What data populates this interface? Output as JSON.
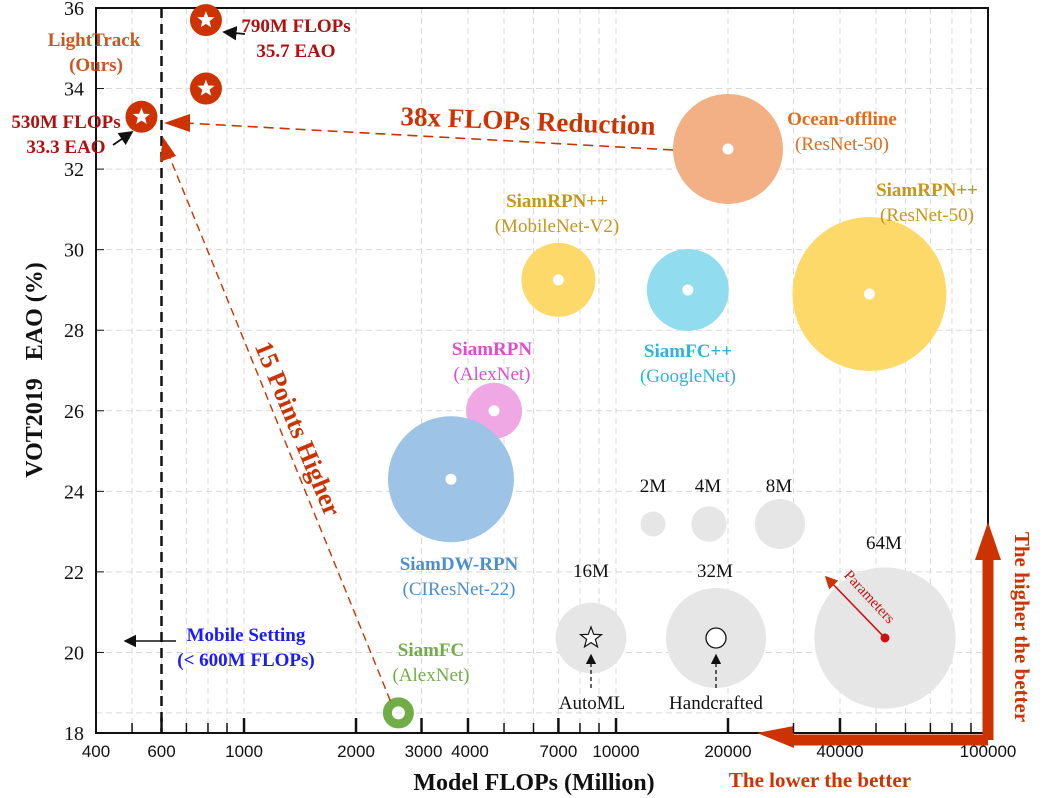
{
  "chart_data": {
    "type": "scatter",
    "subtype": "bubble",
    "title": "",
    "xlabel": "Model FLOPs (Million)",
    "ylabel": "VOT2019   EAO (%)",
    "xscale": "log",
    "xlim": [
      400,
      100000
    ],
    "ylim": [
      18,
      36
    ],
    "grid": true,
    "x_ticks": [
      400,
      600,
      1000,
      2000,
      3000,
      4000,
      7000,
      10000,
      20000,
      40000,
      100000
    ],
    "x_tick_labels": [
      "400",
      "600",
      "1000",
      "2000",
      "3000",
      "4000",
      "7000",
      "10000",
      "20000",
      "40000",
      "100000"
    ],
    "y_ticks": [
      18,
      20,
      22,
      24,
      26,
      28,
      30,
      32,
      34,
      36
    ],
    "y_tick_labels": [
      "18",
      "20",
      "22",
      "24",
      "26",
      "28",
      "30",
      "32",
      "34",
      "36"
    ],
    "series": [
      {
        "name": "LightTrack",
        "sub": "(Ours)",
        "marker": "star",
        "color": "#cc3300",
        "points": [
          {
            "flops": 530,
            "eao": 33.3
          },
          {
            "flops": 790,
            "eao": 34.0
          },
          {
            "flops": 790,
            "eao": 35.7
          }
        ]
      },
      {
        "name": "Ocean-offline",
        "sub": "(ResNet-50)",
        "marker": "bubble",
        "color": "#f2b084",
        "label_color": "#e06a1e",
        "flops": 20000,
        "eao": 32.5,
        "params_m": 26
      },
      {
        "name": "SiamRPN++",
        "sub": "(MobileNet-V2)",
        "marker": "bubble",
        "color": "#fdd96a",
        "label_color": "#c8951a",
        "flops": 7000,
        "eao": 29.25,
        "params_m": 11
      },
      {
        "name": "SiamFC++",
        "sub": "(GoogleNet)",
        "marker": "bubble",
        "color": "#92dcef",
        "label_color": "#2fb4d8",
        "flops": 15600,
        "eao": 29.0,
        "params_m": 14
      },
      {
        "name": "SiamRPN++",
        "sub": "(ResNet-50)",
        "marker": "bubble",
        "color": "#fdd96a",
        "label_color": "#c8951a",
        "flops": 48000,
        "eao": 28.9,
        "params_m": 54
      },
      {
        "name": "SiamRPN",
        "sub": "(AlexNet)",
        "marker": "bubble",
        "color": "#f0a8e4",
        "label_color": "#e04ccc",
        "flops": 4700,
        "eao": 26.0,
        "params_m": 6
      },
      {
        "name": "SiamDW-RPN",
        "sub": "(CIResNet-22)",
        "marker": "bubble",
        "color": "#9dc3e6",
        "label_color": "#4a8fd0",
        "flops": 3600,
        "eao": 24.3,
        "params_m": 36
      },
      {
        "name": "SiamFC",
        "sub": "(AlexNet)",
        "marker": "ring",
        "color": "#70ad47",
        "label_color": "#70ad47",
        "flops": 2600,
        "eao": 18.5,
        "params_m": 2
      }
    ],
    "size_legend": {
      "color": "#e6e6e6",
      "items": [
        {
          "label": "2M",
          "params_m": 2
        },
        {
          "label": "4M",
          "params_m": 4
        },
        {
          "label": "8M",
          "params_m": 8
        },
        {
          "label": "16M",
          "params_m": 16
        },
        {
          "label": "32M",
          "params_m": 32
        },
        {
          "label": "64M",
          "params_m": 64
        }
      ],
      "marker_labels": {
        "automl": "AutoML",
        "handcrafted": "Handcrafted",
        "parameters": "Parameters"
      }
    },
    "annotations": {
      "lighttrack_name": "LightTrack",
      "lighttrack_sub": "(Ours)",
      "p790_flops": "790M FLOPs",
      "p790_eao": "35.7 EAO",
      "p530_flops": "530M FLOPs",
      "p530_eao": "33.3 EAO",
      "flops_reduction": "38x FLOPs Reduction",
      "points_higher": "15 Points Higher",
      "mobile_setting": "Mobile Setting",
      "mobile_setting_sub": "(< 600M FLOPs)",
      "mobile_threshold_flops": 600,
      "lower_better": "The lower the better",
      "higher_better": "The higher the better"
    },
    "colors": {
      "accent": "#cc3300",
      "mobile": "#1a1aff",
      "grid": "#d9d9d9"
    }
  }
}
